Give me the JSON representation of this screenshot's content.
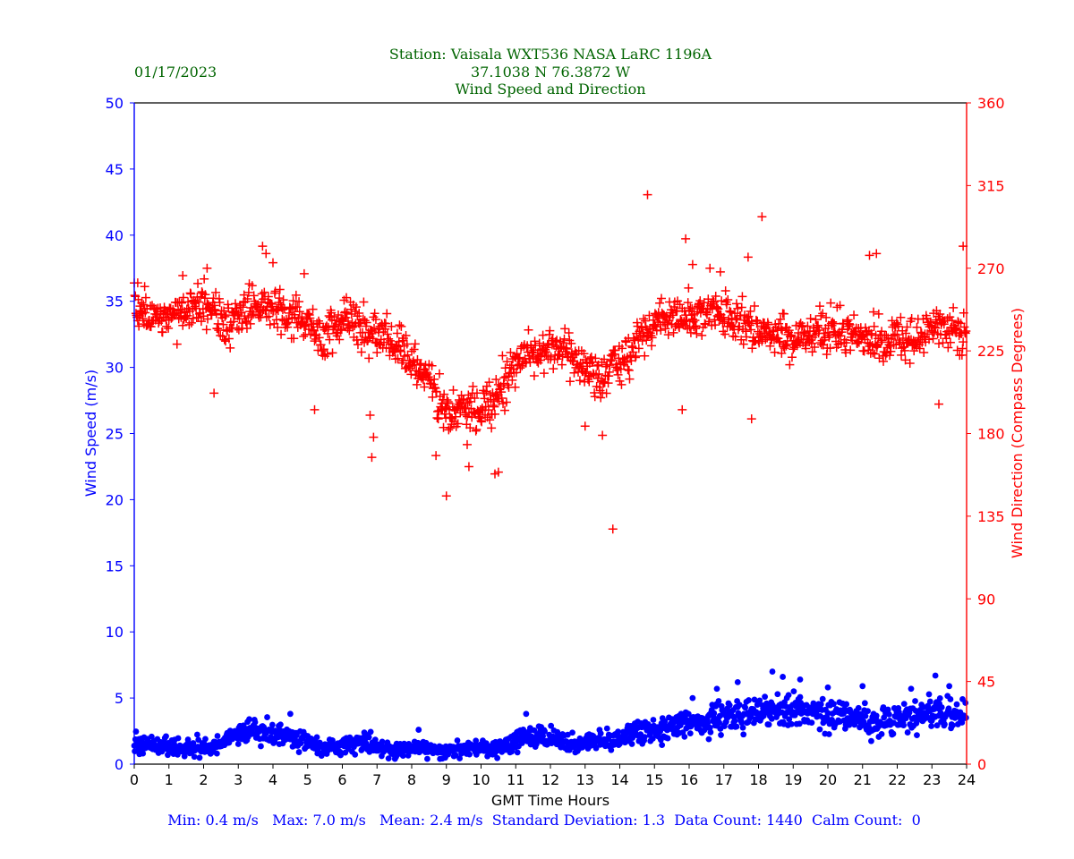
{
  "header": {
    "date": "01/17/2023",
    "title_line1": "Station:  Vaisala WXT536  NASA LaRC 1196A",
    "title_line2": "37.1038 N 76.3872 W",
    "title_line3": "Wind Speed and Direction"
  },
  "footer": {
    "stats": "Min: 0.4 m/s   Max: 7.0 m/s   Mean: 2.4 m/s  Standard Deviation: 1.3  Data Count: 1440  Calm Count:  0"
  },
  "colors": {
    "speed": "#0000ff",
    "direction": "#ff0000",
    "title": "#006400",
    "axis": "#000000"
  },
  "chart_data": {
    "type": "scatter",
    "xlabel": "GMT Time Hours",
    "xlim": [
      0,
      24
    ],
    "x_ticks": [
      "0",
      "1",
      "2",
      "3",
      "4",
      "5",
      "6",
      "7",
      "8",
      "9",
      "10",
      "11",
      "12",
      "13",
      "14",
      "15",
      "16",
      "17",
      "18",
      "19",
      "20",
      "21",
      "22",
      "23",
      "24"
    ],
    "y_left": {
      "label": "Wind Speed (m/s)",
      "lim": [
        0,
        50
      ],
      "ticks": [
        "0",
        "5",
        "10",
        "15",
        "20",
        "25",
        "30",
        "35",
        "40",
        "45",
        "50"
      ]
    },
    "y_right": {
      "label": "Wind Direction (Compass Degrees)",
      "lim": [
        0,
        360
      ],
      "ticks": [
        "0",
        "45",
        "90",
        "135",
        "180",
        "225",
        "270",
        "315",
        "360"
      ]
    },
    "series": [
      {
        "name": "Wind Speed",
        "axis": "left",
        "marker": "circle",
        "color": "#0000ff",
        "x": [
          0,
          0.5,
          1,
          1.5,
          2,
          2.5,
          3,
          3.5,
          4,
          4.5,
          5,
          5.5,
          6,
          6.5,
          7,
          7.5,
          8,
          8.5,
          9,
          9.5,
          10,
          10.5,
          11,
          11.5,
          12,
          12.5,
          13,
          13.5,
          14,
          14.5,
          15,
          15.5,
          16,
          16.5,
          17,
          17.5,
          18,
          18.5,
          19,
          19.5,
          20,
          20.5,
          21,
          21.5,
          22,
          22.5,
          23,
          23.5,
          24
        ],
        "y": [
          1.5,
          1.5,
          1.2,
          1.2,
          1.3,
          1.5,
          2.5,
          2.5,
          2.2,
          2.0,
          1.8,
          1.2,
          1.4,
          1.7,
          1.3,
          1.0,
          1.3,
          1.1,
          1.0,
          1.1,
          1.2,
          1.3,
          1.8,
          2.1,
          1.9,
          1.6,
          1.6,
          1.8,
          1.8,
          2.5,
          2.6,
          2.9,
          3.2,
          3.3,
          3.6,
          3.7,
          3.7,
          4.2,
          4.0,
          4.0,
          3.9,
          3.6,
          3.4,
          3.2,
          3.3,
          3.5,
          3.9,
          3.8,
          3.7
        ]
      },
      {
        "name": "Wind Direction",
        "axis": "right",
        "marker": "plus",
        "color": "#ff0000",
        "x": [
          0,
          0.5,
          1,
          1.5,
          2,
          2.5,
          3,
          3.5,
          4,
          4.5,
          5,
          5.5,
          6,
          6.5,
          7,
          7.5,
          8,
          8.5,
          9,
          9.5,
          10,
          10.5,
          11,
          11.5,
          12,
          12.5,
          13,
          13.5,
          14,
          14.5,
          15,
          15.5,
          16,
          16.5,
          17,
          17.5,
          18,
          18.5,
          19,
          19.5,
          20,
          20.5,
          21,
          21.5,
          22,
          22.5,
          23,
          23.5,
          24
        ],
        "y": [
          250,
          245,
          242,
          248,
          252,
          240,
          246,
          250,
          248,
          244,
          240,
          232,
          242,
          236,
          232,
          230,
          220,
          210,
          190,
          195,
          192,
          200,
          220,
          225,
          225,
          225,
          215,
          210,
          220,
          230,
          240,
          246,
          244,
          246,
          244,
          240,
          236,
          234,
          232,
          232,
          236,
          236,
          232,
          230,
          228,
          230,
          240,
          236,
          235
        ]
      }
    ],
    "extra_points": {
      "speed": {
        "x": [
          4.5,
          8.2,
          11.3,
          16.1,
          16.8,
          17.4,
          18.4,
          18.7,
          19.2,
          20.0,
          21.0,
          22.4,
          23.1,
          23.5
        ],
        "y": [
          3.8,
          2.6,
          3.8,
          5.0,
          5.7,
          6.2,
          7.0,
          6.6,
          6.4,
          5.8,
          5.9,
          5.7,
          6.7,
          5.9
        ]
      },
      "direction": {
        "x": [
          0.1,
          0.3,
          1.4,
          2.1,
          2.3,
          3.7,
          3.8,
          4.0,
          4.9,
          5.2,
          6.8,
          6.9,
          6.85,
          8.7,
          9.0,
          9.6,
          9.65,
          10.3,
          10.4,
          10.5,
          13.0,
          13.5,
          13.8,
          14.8,
          15.8,
          15.9,
          16.1,
          16.6,
          16.9,
          17.8,
          17.7,
          18.1,
          21.2,
          21.4,
          23.2,
          23.9
        ],
        "y": [
          262,
          260,
          266,
          270,
          202,
          282,
          278,
          273,
          267,
          193,
          190,
          178,
          167,
          168,
          146,
          174,
          162,
          183,
          158,
          159,
          184,
          179,
          128,
          310,
          193,
          286,
          272,
          270,
          268,
          188,
          276,
          298,
          277,
          278,
          196,
          282
        ]
      }
    }
  }
}
